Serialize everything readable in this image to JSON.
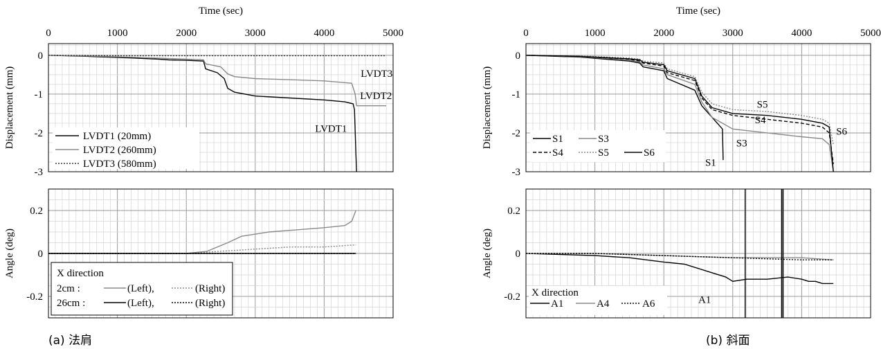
{
  "captions": {
    "a": "(a) 法肩",
    "b": "(b) 斜面"
  },
  "chart_data": [
    {
      "id": "a_disp",
      "type": "line",
      "xlabel": "Time (sec)",
      "ylabel": "Displacement (mm)",
      "xlim": [
        0,
        5000
      ],
      "ylim": [
        -3,
        0.3
      ],
      "xticks": [
        "0",
        "1000",
        "2000",
        "3000",
        "4000",
        "5000"
      ],
      "yticks": [
        "0",
        "-1",
        "-2",
        "-3"
      ],
      "grid": true,
      "legend_position": "bottom-left",
      "series": [
        {
          "name": "LVDT1 (20mm)",
          "color": "#000000",
          "dash": "solid",
          "x": [
            0,
            600,
            1200,
            1600,
            1750,
            2000,
            2250,
            2280,
            2450,
            2550,
            2600,
            2700,
            3000,
            3500,
            4000,
            4300,
            4420,
            4440,
            4460,
            4470
          ],
          "y": [
            0,
            -0.03,
            -0.07,
            -0.1,
            -0.12,
            -0.13,
            -0.15,
            -0.35,
            -0.45,
            -0.6,
            -0.85,
            -0.95,
            -1.05,
            -1.1,
            -1.15,
            -1.2,
            -1.25,
            -1.4,
            -2.5,
            -3.0
          ]
        },
        {
          "name": "LVDT2 (260mm)",
          "color": "#888888",
          "dash": "solid",
          "x": [
            0,
            600,
            1200,
            1700,
            2000,
            2250,
            2280,
            2500,
            2600,
            2700,
            3000,
            3500,
            4000,
            4400,
            4450,
            4470,
            4900
          ],
          "y": [
            0,
            -0.02,
            -0.05,
            -0.08,
            -0.1,
            -0.12,
            -0.22,
            -0.3,
            -0.48,
            -0.55,
            -0.6,
            -0.63,
            -0.66,
            -0.72,
            -1.0,
            -1.3,
            -1.3
          ]
        },
        {
          "name": "LVDT3 (580mm)",
          "color": "#333333",
          "dash": "dotted",
          "x": [
            0,
            1000,
            2000,
            3000,
            4000,
            4900
          ],
          "y": [
            0,
            -0.01,
            -0.01,
            -0.01,
            -0.01,
            -0.01
          ]
        }
      ],
      "annotations": [
        "LVDT3",
        "LVDT2",
        "LVDT1"
      ]
    },
    {
      "id": "a_angle",
      "type": "line",
      "ylabel": "Angle (deg)",
      "xlim": [
        0,
        5000
      ],
      "ylim": [
        -0.3,
        0.3
      ],
      "yticks": [
        "0.2",
        "0",
        "-0.2"
      ],
      "grid": true,
      "legend_position": "bottom-left",
      "legend": {
        "title": "X direction",
        "rows": [
          {
            "prefix": "2cm  :",
            "entries": [
              {
                "label": "(Left),",
                "color": "#888888",
                "dash": "solid"
              },
              {
                "label": "(Right)",
                "color": "#888888",
                "dash": "dotted"
              }
            ]
          },
          {
            "prefix": "26cm :",
            "entries": [
              {
                "label": "(Left),",
                "color": "#000000",
                "dash": "solid"
              },
              {
                "label": "(Right)",
                "color": "#000000",
                "dash": "dotted"
              }
            ]
          }
        ]
      },
      "series": [
        {
          "name": "2cm (Left)",
          "color": "#888888",
          "dash": "solid",
          "x": [
            0,
            1000,
            2000,
            2300,
            2600,
            2800,
            3200,
            3600,
            4000,
            4300,
            4400,
            4460
          ],
          "y": [
            0,
            0,
            0,
            0.01,
            0.05,
            0.08,
            0.1,
            0.11,
            0.12,
            0.13,
            0.15,
            0.2
          ]
        },
        {
          "name": "2cm (Right)",
          "color": "#888888",
          "dash": "dotted",
          "x": [
            0,
            1000,
            2000,
            2500,
            3000,
            3500,
            4000,
            4460
          ],
          "y": [
            0,
            0,
            0,
            0.01,
            0.02,
            0.03,
            0.03,
            0.04
          ]
        },
        {
          "name": "26cm (Left)",
          "color": "#000000",
          "dash": "solid",
          "x": [
            0,
            1000,
            2000,
            3000,
            4000,
            4460
          ],
          "y": [
            0,
            0,
            0,
            0,
            0,
            0
          ]
        },
        {
          "name": "26cm (Right)",
          "color": "#000000",
          "dash": "dotted",
          "x": [
            0,
            1000,
            2000,
            3000,
            4000,
            4460
          ],
          "y": [
            0,
            0,
            0,
            0,
            0,
            0
          ]
        }
      ]
    },
    {
      "id": "b_disp",
      "type": "line",
      "xlabel": "Time (sec)",
      "ylabel": "Displacement (mm)",
      "xlim": [
        0,
        5000
      ],
      "ylim": [
        -3,
        0.3
      ],
      "xticks": [
        "0",
        "1000",
        "2000",
        "3000",
        "4000",
        "5000"
      ],
      "yticks": [
        "0",
        "-1",
        "-2",
        "-3"
      ],
      "grid": true,
      "legend_position": "bottom-left",
      "series": [
        {
          "name": "S1",
          "color": "#000000",
          "dash": "solid",
          "x": [
            0,
            800,
            1500,
            1650,
            1700,
            2000,
            2050,
            2450,
            2550,
            2700,
            2800,
            2850,
            2860
          ],
          "y": [
            0,
            -0.05,
            -0.15,
            -0.2,
            -0.3,
            -0.4,
            -0.6,
            -0.9,
            -1.3,
            -1.6,
            -1.8,
            -1.9,
            -2.7
          ]
        },
        {
          "name": "S3",
          "color": "#888888",
          "dash": "solid",
          "x": [
            0,
            800,
            1500,
            1650,
            1700,
            2000,
            2050,
            2450,
            2550,
            2700,
            3000,
            3500,
            4000,
            4300,
            4400,
            4460
          ],
          "y": [
            0,
            -0.04,
            -0.12,
            -0.17,
            -0.25,
            -0.35,
            -0.5,
            -0.75,
            -1.2,
            -1.6,
            -1.9,
            -2.0,
            -2.1,
            -2.15,
            -2.3,
            -3.0
          ]
        },
        {
          "name": "S4",
          "color": "#000000",
          "dash": "dashed",
          "x": [
            0,
            800,
            1500,
            1650,
            1700,
            2000,
            2050,
            2450,
            2550,
            2700,
            3000,
            3500,
            4000,
            4300,
            4400,
            4460
          ],
          "y": [
            0,
            -0.03,
            -0.1,
            -0.15,
            -0.2,
            -0.28,
            -0.45,
            -0.65,
            -1.1,
            -1.4,
            -1.55,
            -1.65,
            -1.75,
            -1.85,
            -2.0,
            -2.8
          ]
        },
        {
          "name": "S5",
          "color": "#888888",
          "dash": "dotted",
          "x": [
            0,
            800,
            1500,
            1650,
            1700,
            2000,
            2050,
            2450,
            2550,
            2700,
            3000,
            3500,
            4000,
            4300,
            4400,
            4460
          ],
          "y": [
            0,
            -0.02,
            -0.07,
            -0.1,
            -0.15,
            -0.2,
            -0.35,
            -0.55,
            -0.95,
            -1.25,
            -1.4,
            -1.45,
            -1.55,
            -1.65,
            -1.75,
            -2.3
          ]
        },
        {
          "name": "S6",
          "color": "#000000",
          "dash": "solid",
          "x": [
            0,
            800,
            1500,
            1650,
            1700,
            2000,
            2050,
            2450,
            2550,
            2700,
            3000,
            3500,
            4000,
            4300,
            4400,
            4460
          ],
          "y": [
            0,
            -0.03,
            -0.09,
            -0.12,
            -0.18,
            -0.24,
            -0.4,
            -0.6,
            -1.05,
            -1.35,
            -1.5,
            -1.55,
            -1.65,
            -1.75,
            -1.85,
            -3.0
          ]
        }
      ],
      "annotations": [
        "S5",
        "S4",
        "S6",
        "S3",
        "S1"
      ]
    },
    {
      "id": "b_angle",
      "type": "line",
      "ylabel": "Angle (deg)",
      "xlim": [
        0,
        5000
      ],
      "ylim": [
        -0.3,
        0.3
      ],
      "yticks": [
        "0.2",
        "0",
        "-0.2"
      ],
      "grid": true,
      "legend_position": "bottom-left",
      "legend": {
        "title": "X direction",
        "entries": [
          {
            "label": "A1",
            "color": "#000000",
            "dash": "solid"
          },
          {
            "label": "A4",
            "color": "#888888",
            "dash": "solid"
          },
          {
            "label": "A6",
            "color": "#000000",
            "dash": "dotted"
          }
        ]
      },
      "series": [
        {
          "name": "A1",
          "color": "#000000",
          "dash": "solid",
          "x": [
            0,
            1000,
            1500,
            2000,
            2300,
            2500,
            2700,
            2900,
            3000,
            3200,
            3500,
            3800,
            4000,
            4100,
            4200,
            4300,
            4400,
            4450,
            4460
          ],
          "y": [
            0,
            -0.01,
            -0.02,
            -0.04,
            -0.05,
            -0.07,
            -0.09,
            -0.11,
            -0.13,
            -0.12,
            -0.12,
            -0.11,
            -0.12,
            -0.13,
            -0.13,
            -0.14,
            -0.14,
            -0.14,
            -0.14
          ]
        },
        {
          "name": "A4",
          "color": "#888888",
          "dash": "solid",
          "x": [
            0,
            1000,
            2000,
            3000,
            4000,
            4460
          ],
          "y": [
            0,
            0,
            -0.01,
            -0.02,
            -0.02,
            -0.03
          ]
        },
        {
          "name": "A6",
          "color": "#000000",
          "dash": "dotted",
          "x": [
            0,
            1000,
            2000,
            3000,
            4000,
            4460
          ],
          "y": [
            0,
            0,
            -0.01,
            -0.02,
            -0.03,
            -0.03
          ]
        }
      ],
      "annotations": [
        "A1"
      ]
    }
  ]
}
